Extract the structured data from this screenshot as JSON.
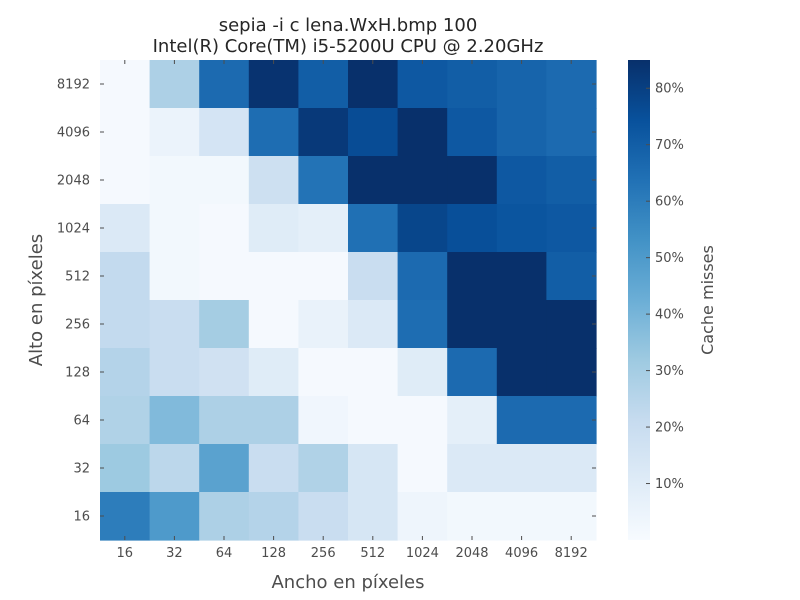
{
  "chart_data": {
    "type": "heatmap",
    "title_lines": [
      "sepia -i c lena.WxH.bmp 100",
      "Intel(R) Core(TM) i5-5200U CPU @ 2.20GHz"
    ],
    "xlabel": "Ancho en píxeles",
    "ylabel": "Alto en píxeles",
    "x_categories": [
      "16",
      "32",
      "64",
      "128",
      "256",
      "512",
      "1024",
      "2048",
      "4096",
      "8192"
    ],
    "y_categories_top_to_bottom": [
      "8192",
      "4096",
      "2048",
      "1024",
      "512",
      "256",
      "128",
      "64",
      "32",
      "16"
    ],
    "values_rows_top_to_bottom": [
      [
        1,
        28,
        66,
        84,
        70,
        86,
        72,
        70,
        68,
        66
      ],
      [
        1,
        5,
        15,
        65,
        82,
        76,
        86,
        72,
        68,
        66
      ],
      [
        1,
        2,
        2,
        18,
        63,
        86,
        88,
        85,
        72,
        70
      ],
      [
        12,
        2,
        1,
        10,
        8,
        64,
        78,
        75,
        73,
        72
      ],
      [
        22,
        2,
        1,
        1,
        1,
        20,
        66,
        88,
        88,
        70
      ],
      [
        22,
        20,
        30,
        1,
        6,
        12,
        65,
        86,
        88,
        88
      ],
      [
        26,
        20,
        17,
        10,
        1,
        1,
        10,
        66,
        88,
        88
      ],
      [
        27,
        38,
        28,
        28,
        3,
        1,
        1,
        8,
        66,
        66
      ],
      [
        32,
        24,
        47,
        20,
        27,
        14,
        1,
        12,
        12,
        12
      ],
      [
        60,
        50,
        28,
        26,
        20,
        14,
        4,
        2,
        2,
        2
      ]
    ],
    "colorbar": {
      "label": "Cache misses",
      "min": 0,
      "max": 85,
      "ticks": [
        10,
        20,
        30,
        40,
        50,
        60,
        70,
        80
      ],
      "tick_labels": [
        "10%",
        "20%",
        "30%",
        "40%",
        "50%",
        "60%",
        "70%",
        "80%"
      ],
      "colormap": "Blues"
    }
  }
}
